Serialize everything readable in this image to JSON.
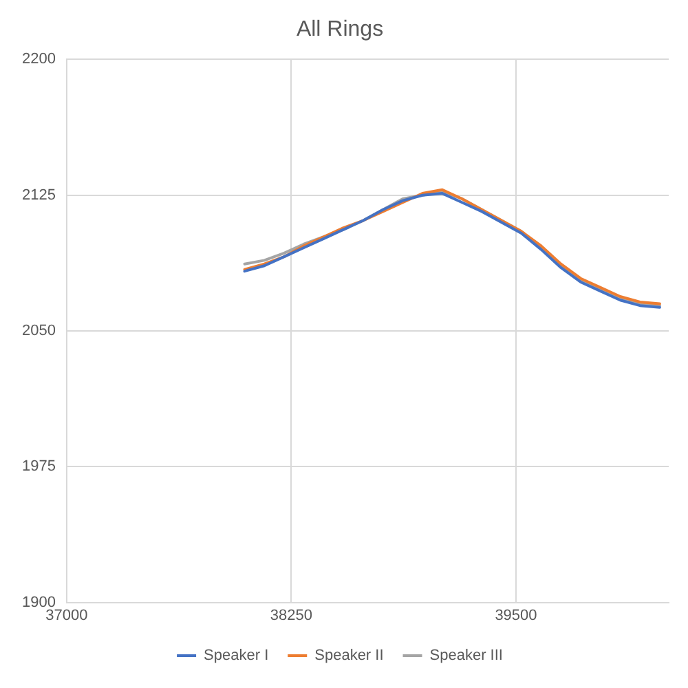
{
  "chart_data": {
    "type": "line",
    "title": "All Rings",
    "x": [
      37990,
      38100,
      38210,
      38320,
      38430,
      38540,
      38650,
      38760,
      38870,
      38980,
      39090,
      39200,
      39310,
      39420,
      39530,
      39640,
      39750,
      39860,
      39970,
      40080,
      40190,
      40300
    ],
    "series": [
      {
        "name": "Speaker I",
        "color": "#4472c4",
        "values": [
          2083,
          2086,
          2091,
          2096,
          2101,
          2106,
          2111,
          2117,
          2122,
          2125,
          2126,
          2121,
          2116,
          2110,
          2104,
          2095,
          2085,
          2077,
          2072,
          2067,
          2064,
          2063
        ]
      },
      {
        "name": "Speaker II",
        "color": "#ed7d31",
        "values": [
          2084,
          2087,
          2091,
          2097,
          2102,
          2107,
          2111,
          2116,
          2121,
          2126,
          2128,
          2123,
          2117,
          2111,
          2105,
          2097,
          2087,
          2079,
          2074,
          2069,
          2066,
          2065
        ]
      },
      {
        "name": "Speaker III",
        "color": "#a5a5a5",
        "values": [
          2087,
          2089,
          2093,
          2098,
          2102,
          2106,
          2111,
          2117,
          2123,
          2125,
          2127,
          2123,
          2117,
          2111,
          2105,
          2096,
          2086,
          2078,
          2073,
          2068,
          2065,
          2064
        ]
      }
    ],
    "xlim": [
      37000,
      40350
    ],
    "xticks": [
      37000,
      38250,
      39500
    ],
    "ylim": [
      1900,
      2200
    ],
    "yticks": [
      1900,
      1975,
      2050,
      2125,
      2200
    ],
    "grid": true,
    "legend": "bottom",
    "marker": "none"
  }
}
